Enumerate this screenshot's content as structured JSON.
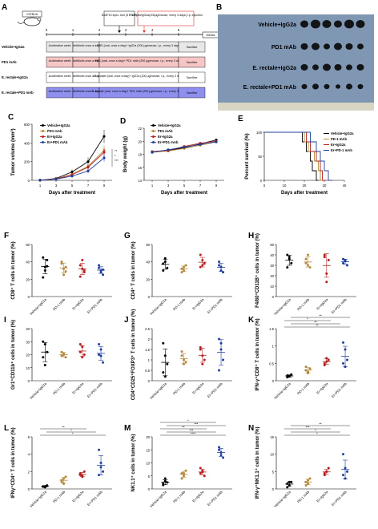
{
  "panels": {
    "A": "A",
    "B": "B",
    "C": "C",
    "D": "D",
    "E": "E",
    "F": "F",
    "G": "G",
    "H": "H",
    "I": "I",
    "J": "J",
    "K": "K",
    "L": "L",
    "M": "M",
    "N": "N"
  },
  "schematic": {
    "mouse_label": "C57BL/6",
    "injection_box": "B16F10 injec- tion (5 × 10⁵)",
    "pd1_note": "PD1mAb/IgG2a(200μg/mouse, every 3 days) i.p. injection",
    "timeline_ticks": [
      "0",
      "1",
      "2",
      "3",
      "4",
      "5"
    ],
    "weeks_label": "Weeks",
    "rows": [
      {
        "label": "Vehicle+IgG2a",
        "c1": "Acclimation week",
        "c2": "Antibiotic once a day",
        "c3": "PBS (oral, once a day)+ IgG2a (200 μg/mouse, i.p., every 3 days)",
        "c4": "Sacrifice",
        "color": "#e8e8e8"
      },
      {
        "label": "PD1 mAb",
        "c1": "Acclimation week",
        "c2": "Antibiotic once a day",
        "c3": "PBS (oral, once a day)+ PD1 mAb (200 μg/mouse, i.p., every 3 days)",
        "c4": "Sacrifice",
        "color": "#f6c5c5"
      },
      {
        "label": "E. rectale+IgG2a",
        "c1": "Acclimation week",
        "c2": "Antibiotic once a day",
        "c3": "E. rectale (oral, once a day)+ IgG2a (200 μg/mouse, i.p., every 3 days)",
        "c4": "Sacrifice",
        "color": "#ffffff"
      },
      {
        "label": "E. rectale+PD1 mAb",
        "c1": "Acclimation week",
        "c2": "Antibiotic once a day",
        "c3": "E. rectale (oral, once a day)+ PD1 mAb (200 μg/mouse, i.p., every 3 days)",
        "c4": "Sacrifice",
        "color": "#8f8ff0"
      }
    ]
  },
  "photo_labels": [
    "Vehicle+IgG2a",
    "PD1 mAb",
    "E. rectale+IgG2a",
    "E. rectale+PD1 mAb"
  ],
  "colors": {
    "vehicle": "#000000",
    "pd1": "#b5893a",
    "er": "#b22222",
    "erpd1": "#1f3f9f"
  },
  "groups": [
    "Vehicle+IgG2a",
    "PD-1 mAb",
    "Er+IgG2a",
    "Er+PD1 mAb"
  ],
  "line_legend": [
    "Vehicle+IgG2a",
    "PD1 mAb",
    "Er+IgG2a",
    "Er+PD1 mAb"
  ],
  "surv_legend": [
    "Vehicle+IgG2a",
    "PD-1 mAb",
    "Er+IgG2a",
    "Er+PD-1 mAb"
  ],
  "chart_data": [
    {
      "panel": "C",
      "type": "line",
      "title": "",
      "xlabel": "Days after treatment",
      "ylabel": "Tumor volume (mm³)",
      "x": [
        1,
        3,
        5,
        7,
        9
      ],
      "ylim": [
        0,
        600
      ],
      "yticks": [
        0,
        200,
        400,
        600
      ],
      "series": [
        {
          "name": "Vehicle+IgG2a",
          "values": [
            2,
            20,
            90,
            200,
            470
          ],
          "err": [
            1,
            6,
            25,
            45,
            70
          ]
        },
        {
          "name": "PD1 mAb",
          "values": [
            2,
            15,
            65,
            150,
            320
          ],
          "err": [
            1,
            5,
            18,
            35,
            55
          ]
        },
        {
          "name": "Er+IgG2a",
          "values": [
            2,
            14,
            60,
            140,
            300
          ],
          "err": [
            1,
            5,
            16,
            30,
            50
          ]
        },
        {
          "name": "Er+PD1 mAb",
          "values": [
            2,
            12,
            45,
            100,
            240
          ],
          "err": [
            1,
            4,
            12,
            25,
            40
          ]
        }
      ]
    },
    {
      "panel": "D",
      "type": "line",
      "title": "",
      "xlabel": "Days after treatment",
      "ylabel": "Body weight (g)",
      "x": [
        1,
        3,
        5,
        7,
        9
      ],
      "ylim": [
        14,
        22
      ],
      "yticks": [
        14,
        16,
        18,
        20,
        22
      ],
      "series": [
        {
          "name": "Vehicle+IgG2a",
          "values": [
            18.4,
            18.6,
            19.0,
            19.6,
            20.2
          ]
        },
        {
          "name": "PD1 mAb",
          "values": [
            18.3,
            18.5,
            18.9,
            19.4,
            19.9
          ]
        },
        {
          "name": "Er+IgG2a",
          "values": [
            18.4,
            18.6,
            19.2,
            19.7,
            20.0
          ]
        },
        {
          "name": "Er+PD1 mAb",
          "values": [
            18.3,
            18.7,
            19.1,
            19.5,
            19.9
          ]
        }
      ]
    },
    {
      "panel": "E",
      "type": "line",
      "title": "",
      "xlabel": "Days after treatment",
      "ylabel": "Percent survival (%)",
      "xlim": [
        0,
        40
      ],
      "xticks": [
        0,
        10,
        20,
        30,
        40
      ],
      "ylim": [
        0,
        100
      ],
      "yticks": [
        0,
        50,
        100
      ],
      "series": [
        {
          "name": "Vehicle+IgG2a",
          "drops": [
            [
              19,
              100
            ],
            [
              21,
              80
            ],
            [
              23,
              60
            ],
            [
              24,
              40
            ],
            [
              26,
              20
            ],
            [
              27,
              0
            ]
          ]
        },
        {
          "name": "PD-1 mAb",
          "drops": [
            [
              20,
              100
            ],
            [
              22,
              80
            ],
            [
              25,
              60
            ],
            [
              27,
              40
            ],
            [
              28,
              20
            ],
            [
              30,
              0
            ]
          ]
        },
        {
          "name": "Er+IgG2a",
          "drops": [
            [
              21,
              100
            ],
            [
              23,
              80
            ],
            [
              26,
              60
            ],
            [
              28,
              40
            ],
            [
              29,
              20
            ],
            [
              31,
              0
            ]
          ]
        },
        {
          "name": "Er+PD-1 mAb",
          "drops": [
            [
              23,
              100
            ],
            [
              26,
              80
            ],
            [
              28,
              60
            ],
            [
              30,
              40
            ],
            [
              32,
              20
            ],
            [
              34,
              0
            ]
          ]
        }
      ]
    },
    {
      "panel": "F",
      "type": "scatter",
      "ylabel": "CD8⁺ T cells in tumor (%)",
      "ylim": [
        0,
        60
      ],
      "yticks": [
        0,
        20,
        40,
        60
      ],
      "groups": [
        [
          45,
          34,
          42,
          22,
          30,
          35
        ],
        [
          38,
          32,
          29,
          40,
          25,
          34
        ],
        [
          36,
          42,
          28,
          23,
          32,
          30
        ],
        [
          36,
          30,
          25,
          33,
          28,
          31
        ]
      ]
    },
    {
      "panel": "G",
      "type": "scatter",
      "ylabel": "CD4⁺ T cells in tumor (%)",
      "ylim": [
        0,
        60
      ],
      "yticks": [
        0,
        20,
        40,
        60
      ],
      "groups": [
        [
          38,
          44,
          33,
          30,
          40
        ],
        [
          32,
          30,
          36,
          28,
          34
        ],
        [
          48,
          42,
          38,
          34,
          36
        ],
        [
          40,
          30,
          28,
          36,
          34
        ]
      ]
    },
    {
      "panel": "H",
      "type": "scatter",
      "ylabel": "F4/80⁺CD11B⁺ cells in tumor (%)",
      "ylim": [
        0,
        50
      ],
      "yticks": [
        0,
        10,
        20,
        30,
        40,
        50
      ],
      "groups": [
        [
          40,
          36,
          32,
          28,
          38
        ],
        [
          36,
          30,
          28,
          32,
          40
        ],
        [
          40,
          22,
          35,
          38,
          14
        ],
        [
          36,
          34,
          30,
          32,
          35
        ]
      ]
    },
    {
      "panel": "I",
      "type": "scatter",
      "ylabel": "Gr1⁺CD11b⁺ cells in tumor (%)",
      "ylim": [
        0,
        40
      ],
      "yticks": [
        0,
        10,
        20,
        30,
        40
      ],
      "groups": [
        [
          30,
          28,
          22,
          18,
          12
        ],
        [
          22,
          20,
          18,
          19,
          21
        ],
        [
          28,
          26,
          20,
          22,
          18
        ],
        [
          28,
          24,
          14,
          20,
          19
        ]
      ]
    },
    {
      "panel": "J",
      "type": "scatter",
      "ylabel": "CD4⁺CD25⁺FOXP3⁺ T cells in tumor (%)",
      "ylim": [
        0,
        2.5
      ],
      "yticks": [
        0,
        0.5,
        1.0,
        1.5,
        2.0,
        2.5
      ],
      "groups": [
        [
          1.8,
          1.2,
          0.8,
          0.4,
          0.2
        ],
        [
          1.4,
          1.0,
          0.9,
          1.2,
          0.8
        ],
        [
          1.6,
          1.2,
          1.0,
          1.5,
          0.8
        ],
        [
          2.0,
          1.5,
          1.0,
          0.5,
          1.8
        ]
      ]
    },
    {
      "panel": "K",
      "type": "scatter",
      "ylabel": "IFN-γ⁺CD8⁺ T cells in tumor (%)",
      "ylim": [
        0,
        1.5
      ],
      "yticks": [
        0,
        0.5,
        1.0,
        1.5
      ],
      "groups": [
        [
          0.15,
          0.12,
          0.18,
          0.1,
          0.14
        ],
        [
          0.3,
          0.25,
          0.35,
          0.4,
          0.22
        ],
        [
          0.5,
          0.55,
          0.6,
          0.45,
          0.65
        ],
        [
          1.1,
          0.9,
          0.6,
          0.5,
          0.4
        ]
      ]
    },
    {
      "panel": "L",
      "type": "scatter",
      "ylabel": "IFNγ⁺CD4⁺ T cells in tumor (%)",
      "ylim": [
        0,
        6
      ],
      "yticks": [
        0,
        2,
        4,
        6
      ],
      "groups": [
        [
          0.3,
          0.2,
          0.4,
          0.25,
          0.3
        ],
        [
          1.0,
          0.6,
          1.4,
          0.8,
          1.2
        ],
        [
          1.6,
          1.4,
          2.0,
          1.8,
          1.5
        ],
        [
          4.5,
          3.0,
          2.0,
          1.6,
          2.5
        ]
      ]
    },
    {
      "panel": "M",
      "type": "scatter",
      "ylabel": "NK1.1⁺ cells in tumor (%)",
      "ylim": [
        0,
        20
      ],
      "yticks": [
        0,
        5,
        10,
        15,
        20
      ],
      "groups": [
        [
          2,
          3,
          2.5,
          1.5,
          4
        ],
        [
          6,
          5,
          7,
          4,
          6
        ],
        [
          6,
          7,
          5,
          8,
          6.5
        ],
        [
          16,
          14,
          12,
          15,
          13
        ]
      ]
    },
    {
      "panel": "N",
      "type": "scatter",
      "ylabel": "IFN-γ⁺NK1.1⁺ cells in tumor (%)",
      "ylim": [
        0,
        15
      ],
      "yticks": [
        0,
        5,
        10,
        15
      ],
      "groups": [
        [
          1.5,
          1,
          2,
          0.5,
          2
        ],
        [
          2,
          1.5,
          3,
          1,
          2.5
        ],
        [
          4,
          5,
          6,
          4.5,
          5
        ],
        [
          10,
          6,
          5,
          4,
          3
        ]
      ]
    }
  ],
  "sig": {
    "K": [
      "**",
      "**",
      "*",
      "**"
    ],
    "L": [
      "*",
      "*",
      "**"
    ],
    "M": [
      "****",
      "***",
      "**",
      "***",
      "*"
    ],
    "N": [
      "*",
      "*",
      "***",
      "**"
    ]
  }
}
